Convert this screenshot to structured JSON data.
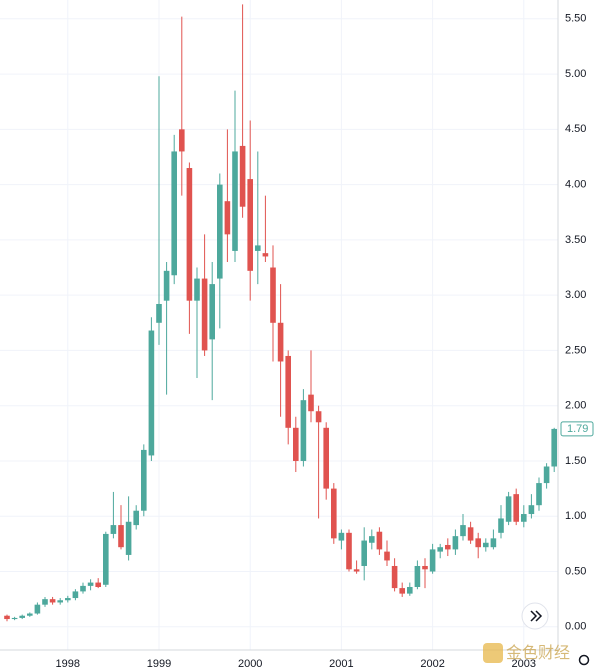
{
  "chart_data": {
    "type": "candlestick",
    "categories": [
      null,
      null,
      null,
      null,
      null,
      null,
      null,
      null,
      null,
      null,
      null,
      null,
      null,
      null,
      null,
      null,
      null,
      null,
      null,
      null,
      null,
      null,
      null,
      null,
      null,
      null,
      null,
      null,
      null,
      null,
      null,
      null,
      null,
      null,
      null,
      null,
      null,
      null,
      null,
      null,
      null,
      null,
      null,
      null,
      null,
      null,
      null,
      null,
      null,
      null,
      null,
      null,
      null,
      null,
      null,
      null,
      null,
      null,
      null,
      null,
      null,
      null,
      null,
      null,
      null,
      null,
      null,
      null,
      null,
      null,
      null,
      null,
      null
    ],
    "open": [
      0.1,
      0.07,
      0.08,
      0.1,
      0.12,
      0.2,
      0.25,
      0.22,
      0.24,
      0.26,
      0.32,
      0.37,
      0.4,
      0.38,
      0.84,
      0.92,
      0.65,
      0.92,
      1.05,
      1.55,
      2.75,
      2.95,
      3.18,
      4.5,
      4.15,
      2.95,
      3.15,
      2.6,
      3.15,
      3.85,
      3.4,
      4.35,
      4.05,
      3.4,
      3.38,
      3.25,
      2.75,
      2.45,
      1.8,
      1.5,
      2.1,
      1.95,
      1.8,
      1.25,
      0.78,
      0.85,
      0.52,
      0.55,
      0.76,
      0.86,
      0.68,
      0.55,
      0.35,
      0.3,
      0.36,
      0.55,
      0.5,
      0.68,
      0.74,
      0.7,
      0.82,
      0.9,
      0.8,
      0.72,
      0.72,
      0.85,
      0.95,
      1.2,
      0.95,
      1.02,
      1.1,
      1.3,
      1.45
    ],
    "high": [
      0.11,
      0.09,
      0.11,
      0.13,
      0.22,
      0.27,
      0.27,
      0.26,
      0.28,
      0.34,
      0.4,
      0.43,
      0.44,
      0.86,
      1.22,
      1.1,
      1.18,
      1.1,
      1.65,
      2.8,
      4.98,
      3.3,
      4.45,
      5.52,
      4.2,
      3.25,
      3.55,
      3.3,
      4.1,
      4.5,
      4.85,
      5.63,
      4.58,
      4.3,
      3.9,
      3.45,
      3.1,
      2.5,
      1.9,
      2.15,
      2.5,
      2.0,
      1.85,
      1.3,
      0.88,
      0.88,
      0.6,
      0.9,
      0.88,
      0.9,
      0.78,
      0.62,
      0.4,
      0.4,
      0.6,
      0.62,
      0.75,
      0.75,
      0.8,
      0.88,
      1.02,
      0.95,
      0.85,
      0.8,
      0.88,
      1.1,
      1.22,
      1.25,
      1.1,
      1.2,
      1.35,
      1.48,
      1.8
    ],
    "low": [
      0.05,
      0.06,
      0.07,
      0.09,
      0.11,
      0.18,
      0.2,
      0.2,
      0.22,
      0.24,
      0.3,
      0.33,
      0.35,
      0.36,
      0.8,
      0.7,
      0.6,
      0.88,
      1.0,
      1.5,
      2.55,
      2.1,
      3.1,
      3.9,
      2.65,
      2.25,
      2.45,
      2.05,
      2.7,
      3.3,
      3.3,
      3.7,
      2.95,
      3.1,
      3.3,
      2.4,
      1.9,
      1.65,
      1.4,
      1.45,
      1.85,
      0.98,
      1.15,
      0.75,
      0.7,
      0.5,
      0.48,
      0.42,
      0.7,
      0.65,
      0.55,
      0.32,
      0.27,
      0.28,
      0.34,
      0.35,
      0.48,
      0.62,
      0.64,
      0.65,
      0.78,
      0.75,
      0.62,
      0.68,
      0.7,
      0.8,
      0.92,
      0.92,
      0.9,
      0.98,
      1.05,
      1.25,
      1.4
    ],
    "close": [
      0.07,
      0.08,
      0.1,
      0.12,
      0.2,
      0.25,
      0.22,
      0.24,
      0.26,
      0.32,
      0.37,
      0.4,
      0.36,
      0.84,
      0.92,
      0.72,
      0.95,
      1.05,
      1.6,
      2.68,
      2.92,
      3.22,
      4.3,
      4.3,
      2.95,
      3.15,
      2.5,
      3.1,
      4.0,
      3.55,
      4.3,
      3.8,
      3.22,
      3.45,
      3.35,
      2.75,
      2.4,
      1.8,
      1.5,
      2.05,
      1.95,
      1.85,
      1.25,
      0.8,
      0.85,
      0.52,
      0.5,
      0.78,
      0.82,
      0.7,
      0.6,
      0.35,
      0.3,
      0.36,
      0.55,
      0.52,
      0.7,
      0.72,
      0.7,
      0.82,
      0.92,
      0.78,
      0.72,
      0.76,
      0.8,
      0.98,
      1.18,
      0.95,
      1.02,
      1.1,
      1.3,
      1.45,
      1.79
    ],
    "up_color": "#4da89c",
    "down_color": "#e0534f",
    "ylim": [
      -0.21,
      5.67
    ],
    "yticks": [
      {
        "value": 0,
        "label": "0.00"
      },
      {
        "value": 0.5,
        "label": "0.50"
      },
      {
        "value": 1,
        "label": "1.00"
      },
      {
        "value": 1.5,
        "label": "1.50"
      },
      {
        "value": 2,
        "label": "2.00"
      },
      {
        "value": 2.5,
        "label": "2.50"
      },
      {
        "value": 3,
        "label": "3.00"
      },
      {
        "value": 3.5,
        "label": "3.50"
      },
      {
        "value": 4,
        "label": "4.00"
      },
      {
        "value": 4.5,
        "label": "4.50"
      },
      {
        "value": 5,
        "label": "5.00"
      },
      {
        "value": 5.5,
        "label": "5.50"
      }
    ],
    "xticks": [
      {
        "value": 8,
        "label": "1998"
      },
      {
        "value": 20,
        "label": "1999"
      },
      {
        "value": 32,
        "label": "2000"
      },
      {
        "value": 44,
        "label": "2001"
      },
      {
        "value": 56,
        "label": "2002"
      },
      {
        "value": 68,
        "label": "2003"
      }
    ],
    "grid": true,
    "watermark": "金色财经"
  }
}
